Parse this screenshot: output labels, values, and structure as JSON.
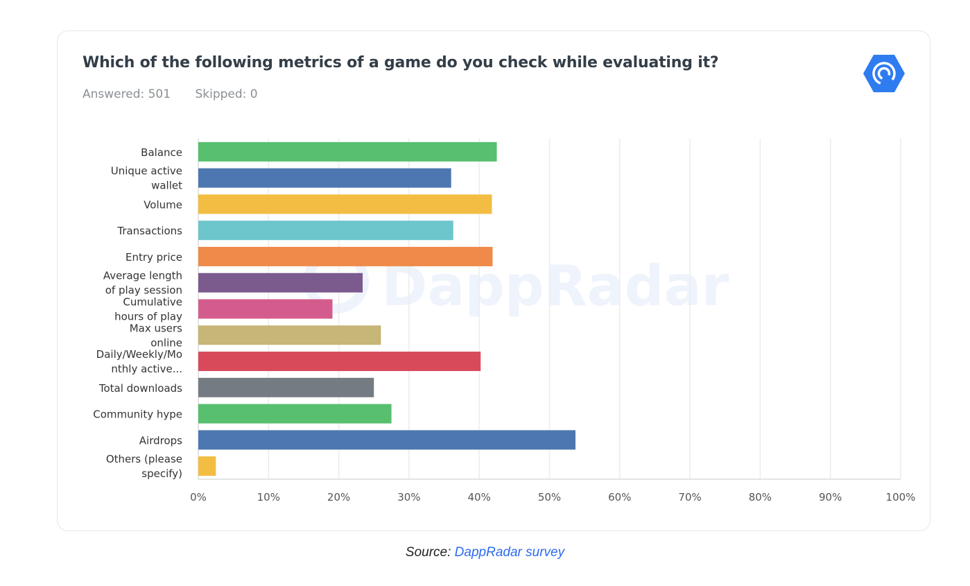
{
  "header": {
    "title": "Which of the following metrics of a game do you check while evaluating it?",
    "answered": "Answered: 501",
    "skipped": "Skipped: 0",
    "logo_icon": "dappradar-logo-icon"
  },
  "watermark": "DappRadar",
  "source": {
    "prefix": "Source:",
    "link": "DappRadar survey"
  },
  "chart_data": {
    "type": "bar",
    "orientation": "horizontal",
    "categories": [
      [
        "Balance"
      ],
      [
        "Unique active",
        "wallet"
      ],
      [
        "Volume"
      ],
      [
        "Transactions"
      ],
      [
        "Entry price"
      ],
      [
        "Average length",
        "of play session"
      ],
      [
        "Cumulative",
        "hours of play"
      ],
      [
        "Max users",
        "online"
      ],
      [
        "Daily/Weekly/Mo",
        "nthly active..."
      ],
      [
        "Total downloads"
      ],
      [
        "Community hype"
      ],
      [
        "Airdrops"
      ],
      [
        "Others (please",
        "specify)"
      ]
    ],
    "values": [
      42.5,
      36.0,
      41.8,
      36.3,
      41.9,
      23.4,
      19.1,
      26.0,
      40.2,
      25.0,
      27.5,
      53.7,
      2.5
    ],
    "colors": [
      "#57bf6e",
      "#4d77b0",
      "#f2bd42",
      "#6cc6cc",
      "#ef8a4a",
      "#7b5a8e",
      "#d45c8c",
      "#c6b678",
      "#d84a5a",
      "#747b82",
      "#57bf6e",
      "#4d77b0",
      "#f2bd42"
    ],
    "xlim": [
      0,
      100
    ],
    "xticks": [
      "0%",
      "10%",
      "20%",
      "30%",
      "40%",
      "50%",
      "60%",
      "70%",
      "80%",
      "90%",
      "100%"
    ],
    "grid": true,
    "legend": "none"
  }
}
